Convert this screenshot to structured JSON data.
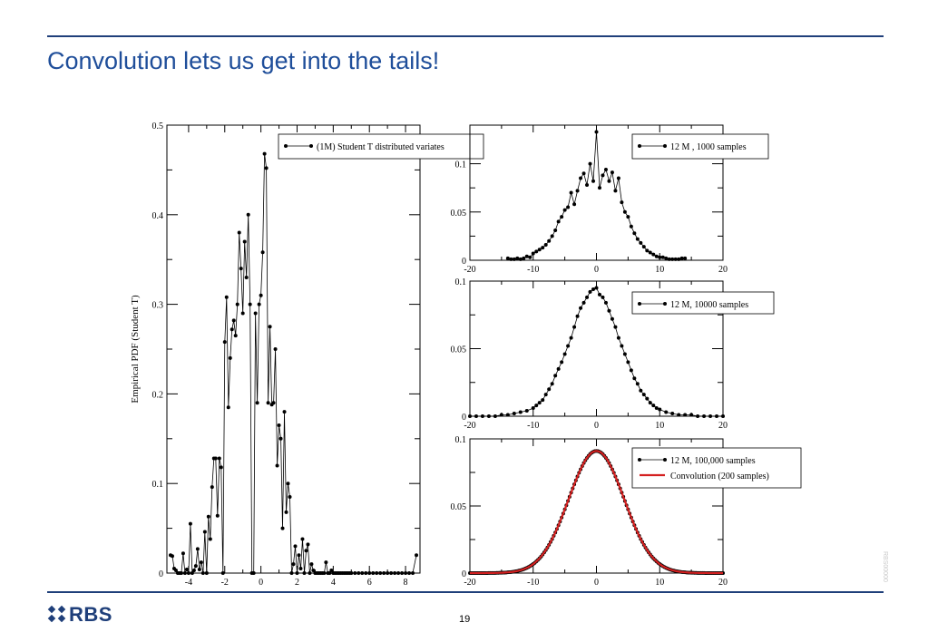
{
  "slide": {
    "title": "Convolution lets us get into the tails!",
    "page_number": "19",
    "logo_text": "RBS",
    "side_code": "RBS00000"
  },
  "colors": {
    "title": "#1f4e9a",
    "rule": "#1f3f7a",
    "series": "#000000",
    "convolution": "#d42020"
  },
  "chart_data": [
    {
      "type": "line",
      "ylabel": "Empirical PDF (Student T)",
      "xlabel": "",
      "xlim": [
        -5.2,
        8.8
      ],
      "ylim": [
        0,
        0.5
      ],
      "xticks": [
        -4,
        -2,
        0,
        2,
        4,
        6,
        8
      ],
      "yticks": [
        0,
        0.1,
        0.2,
        0.3,
        0.4,
        0.5
      ],
      "legend": [
        "(1M) Student T  distributed variates"
      ],
      "series": [
        {
          "name": "(1M) Student T  distributed variates",
          "x": [
            -5.0,
            -4.9,
            -4.8,
            -4.7,
            -4.6,
            -4.5,
            -4.4,
            -4.3,
            -4.2,
            -4.1,
            -4.0,
            -3.9,
            -3.8,
            -3.7,
            -3.6,
            -3.5,
            -3.4,
            -3.3,
            -3.2,
            -3.1,
            -3.0,
            -2.9,
            -2.8,
            -2.7,
            -2.6,
            -2.5,
            -2.4,
            -2.3,
            -2.2,
            -2.1,
            -2.0,
            -1.9,
            -1.8,
            -1.7,
            -1.6,
            -1.5,
            -1.4,
            -1.3,
            -1.2,
            -1.1,
            -1.0,
            -0.9,
            -0.8,
            -0.7,
            -0.6,
            -0.5,
            -0.4,
            -0.3,
            -0.2,
            -0.1,
            0.0,
            0.1,
            0.2,
            0.3,
            0.4,
            0.5,
            0.6,
            0.7,
            0.8,
            0.9,
            1.0,
            1.1,
            1.2,
            1.3,
            1.4,
            1.5,
            1.6,
            1.7,
            1.8,
            1.9,
            2.0,
            2.1,
            2.2,
            2.3,
            2.4,
            2.5,
            2.6,
            2.7,
            2.8,
            2.9,
            3.0,
            3.1,
            3.2,
            3.3,
            3.4,
            3.5,
            3.6,
            3.7,
            3.8,
            3.9,
            4.0,
            4.1,
            4.2,
            4.3,
            4.4,
            4.5,
            4.6,
            4.7,
            4.8,
            4.9,
            5.0,
            5.2,
            5.4,
            5.6,
            5.8,
            6.0,
            6.2,
            6.4,
            6.6,
            6.8,
            7.0,
            7.2,
            7.4,
            7.6,
            7.8,
            8.0,
            8.2,
            8.4,
            8.6
          ],
          "y": [
            0.02,
            0.019,
            0.005,
            0.003,
            0.0,
            0.0,
            0.0,
            0.022,
            0.0,
            0.004,
            0.0,
            0.055,
            0.0,
            0.003,
            0.008,
            0.027,
            0.004,
            0.012,
            0.0,
            0.046,
            0.0,
            0.063,
            0.038,
            0.096,
            0.128,
            0.128,
            0.064,
            0.128,
            0.118,
            0.0,
            0.258,
            0.308,
            0.185,
            0.24,
            0.272,
            0.282,
            0.265,
            0.3,
            0.38,
            0.34,
            0.29,
            0.37,
            0.33,
            0.4,
            0.3,
            0.0,
            0.0,
            0.29,
            0.19,
            0.3,
            0.31,
            0.358,
            0.468,
            0.452,
            0.19,
            0.275,
            0.188,
            0.19,
            0.25,
            0.12,
            0.165,
            0.15,
            0.05,
            0.18,
            0.068,
            0.1,
            0.085,
            0.0,
            0.01,
            0.03,
            0.0,
            0.02,
            0.005,
            0.038,
            0.0,
            0.025,
            0.032,
            0.0,
            0.01,
            0.003,
            0.0,
            0.0,
            0.0,
            0.0,
            0.0,
            0.0,
            0.012,
            0.0,
            0.0,
            0.003,
            0.0,
            0.0,
            0.0,
            0.0,
            0.0,
            0.0,
            0.0,
            0.0,
            0.0,
            0.0,
            0.0,
            0.0,
            0.0,
            0.0,
            0.0,
            0.0,
            0.0,
            0.0,
            0.0,
            0.0,
            0.0,
            0.0,
            0.0,
            0.0,
            0.0,
            0.0,
            0.0,
            0.0,
            0.02
          ]
        }
      ]
    },
    {
      "type": "line",
      "xlim": [
        -20,
        20
      ],
      "ylim": [
        0,
        0.14
      ],
      "xticks": [
        -20,
        -10,
        0,
        10,
        20
      ],
      "yticks": [
        0,
        0.05,
        0.1
      ],
      "legend": [
        "12 M , 1000 samples"
      ],
      "series": [
        {
          "name": "12 M , 1000 samples",
          "x": [
            -14.0,
            -13.5,
            -13.0,
            -12.5,
            -12.0,
            -11.5,
            -11.0,
            -10.5,
            -10.0,
            -9.5,
            -9.0,
            -8.5,
            -8.0,
            -7.5,
            -7.0,
            -6.5,
            -6.0,
            -5.5,
            -5.0,
            -4.5,
            -4.0,
            -3.5,
            -3.0,
            -2.5,
            -2.0,
            -1.5,
            -1.0,
            -0.5,
            0.0,
            0.5,
            1.0,
            1.5,
            2.0,
            2.5,
            3.0,
            3.5,
            4.0,
            4.5,
            5.0,
            5.5,
            6.0,
            6.5,
            7.0,
            7.5,
            8.0,
            8.5,
            9.0,
            9.5,
            10.0,
            10.5,
            11.0,
            11.5,
            12.0,
            12.5,
            13.0,
            13.5,
            14.0
          ],
          "y": [
            0.002,
            0.001,
            0.001,
            0.002,
            0.001,
            0.002,
            0.004,
            0.003,
            0.007,
            0.009,
            0.011,
            0.013,
            0.016,
            0.02,
            0.025,
            0.031,
            0.04,
            0.045,
            0.052,
            0.055,
            0.07,
            0.058,
            0.072,
            0.085,
            0.09,
            0.078,
            0.1,
            0.082,
            0.133,
            0.075,
            0.088,
            0.094,
            0.082,
            0.091,
            0.072,
            0.085,
            0.06,
            0.05,
            0.045,
            0.035,
            0.028,
            0.022,
            0.018,
            0.014,
            0.01,
            0.008,
            0.006,
            0.004,
            0.003,
            0.003,
            0.002,
            0.001,
            0.001,
            0.001,
            0.001,
            0.002,
            0.002
          ]
        }
      ]
    },
    {
      "type": "line",
      "xlim": [
        -20,
        20
      ],
      "ylim": [
        0,
        0.1
      ],
      "xticks": [
        -20,
        -10,
        0,
        10,
        20
      ],
      "yticks": [
        0,
        0.05,
        0.1
      ],
      "legend": [
        "12 M, 10000 samples"
      ],
      "series": [
        {
          "name": "12 M, 10000 samples",
          "x": [
            -20.0,
            -19.0,
            -18.0,
            -17.0,
            -16.0,
            -15.0,
            -14.0,
            -13.0,
            -12.0,
            -11.0,
            -10.0,
            -9.5,
            -9.0,
            -8.5,
            -8.0,
            -7.5,
            -7.0,
            -6.5,
            -6.0,
            -5.5,
            -5.0,
            -4.5,
            -4.0,
            -3.5,
            -3.0,
            -2.5,
            -2.0,
            -1.5,
            -1.0,
            -0.5,
            0.0,
            0.5,
            1.0,
            1.5,
            2.0,
            2.5,
            3.0,
            3.5,
            4.0,
            4.5,
            5.0,
            5.5,
            6.0,
            6.5,
            7.0,
            7.5,
            8.0,
            8.5,
            9.0,
            9.5,
            10.0,
            11.0,
            12.0,
            13.0,
            14.0,
            15.0,
            16.0,
            17.0,
            18.0,
            19.0,
            20.0
          ],
          "y": [
            0.0,
            0.0,
            0.0,
            0.0,
            0.0,
            0.001,
            0.001,
            0.002,
            0.003,
            0.004,
            0.006,
            0.008,
            0.01,
            0.012,
            0.016,
            0.02,
            0.024,
            0.03,
            0.035,
            0.04,
            0.046,
            0.052,
            0.058,
            0.066,
            0.074,
            0.08,
            0.084,
            0.088,
            0.092,
            0.094,
            0.095,
            0.09,
            0.088,
            0.084,
            0.078,
            0.072,
            0.066,
            0.058,
            0.052,
            0.046,
            0.04,
            0.034,
            0.028,
            0.024,
            0.019,
            0.016,
            0.013,
            0.01,
            0.008,
            0.006,
            0.005,
            0.003,
            0.002,
            0.001,
            0.001,
            0.001,
            0.0,
            0.0,
            0.0,
            0.0,
            0.0
          ]
        }
      ]
    },
    {
      "type": "line",
      "xlim": [
        -20,
        20
      ],
      "ylim": [
        0,
        0.1
      ],
      "xticks": [
        -20,
        -10,
        0,
        10,
        20
      ],
      "yticks": [
        0,
        0.05,
        0.1
      ],
      "legend": [
        "12 M, 100,000 samples",
        "Convolution (200 samples)"
      ],
      "series": [
        {
          "name": "12 M, 100,000 samples",
          "sigma": 4.38,
          "peak": 0.091
        },
        {
          "name": "Convolution (200 samples)",
          "sigma": 4.38,
          "peak": 0.091
        }
      ]
    }
  ]
}
